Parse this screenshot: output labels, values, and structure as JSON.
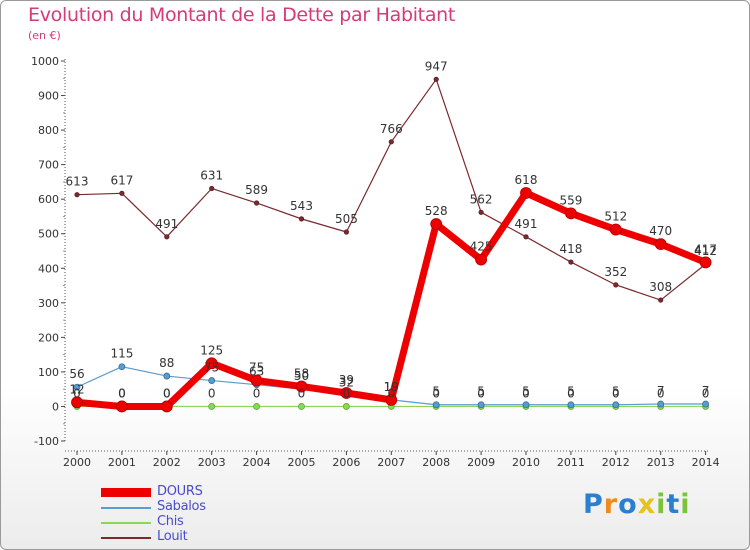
{
  "chart_data": {
    "type": "line",
    "title": "Evolution du Montant de la Dette par Habitant",
    "subtitle": "(en €)",
    "xlabel": "",
    "ylabel": "",
    "ylim": [
      -100,
      1000
    ],
    "yticks": [
      "-100",
      "0",
      "100",
      "200",
      "300",
      "400",
      "500",
      "600",
      "700",
      "800",
      "900",
      "1000"
    ],
    "ytick_values": [
      -100,
      0,
      100,
      200,
      300,
      400,
      500,
      600,
      700,
      800,
      900,
      1000
    ],
    "categories": [
      "2000",
      "2001",
      "2002",
      "2003",
      "2004",
      "2005",
      "2006",
      "2007",
      "2008",
      "2009",
      "2010",
      "2011",
      "2012",
      "2013",
      "2014"
    ],
    "grid": false,
    "legend_position": "bottom-left",
    "series": [
      {
        "name": "Louit",
        "color": "#7b2a2f",
        "values": [
          613,
          617,
          491,
          631,
          589,
          543,
          505,
          766,
          947,
          562,
          491,
          418,
          352,
          308,
          412
        ],
        "labels": [
          "613",
          "617",
          "491",
          "631",
          "589",
          "543",
          "505",
          "766",
          "947",
          "562",
          "491",
          "418",
          "352",
          "308",
          "412"
        ]
      },
      {
        "name": "Chis",
        "color": "#8ed65a",
        "values": [
          0,
          0,
          0,
          0,
          0,
          0,
          0,
          0,
          0,
          0,
          0,
          0,
          0,
          0,
          0
        ],
        "labels": [
          "0",
          "0",
          "0",
          "0",
          "0",
          "0",
          "0",
          "0",
          "0",
          "0",
          "0",
          "0",
          "0",
          "0",
          "0"
        ]
      },
      {
        "name": "Sabalos",
        "color": "#5a9cd0",
        "values": [
          56,
          115,
          88,
          75,
          63,
          50,
          32,
          19,
          5,
          5,
          5,
          5,
          5,
          7,
          7
        ],
        "labels": [
          "56",
          "115",
          "88",
          "75",
          "63",
          "50",
          "32",
          "19",
          "5",
          "5",
          "5",
          "5",
          "5",
          "7",
          "7"
        ]
      },
      {
        "name": "DOURS",
        "color": "#ee0000",
        "values": [
          12,
          0,
          0,
          125,
          75,
          58,
          39,
          19,
          528,
          425,
          618,
          559,
          512,
          470,
          417
        ],
        "labels": [
          "12",
          "0",
          "0",
          "125",
          "75",
          "58",
          "39",
          "19",
          "528",
          "425",
          "618",
          "559",
          "512",
          "470",
          "417"
        ]
      }
    ],
    "legend": [
      {
        "name": "DOURS",
        "color": "#ee0000"
      },
      {
        "name": "Sabalos",
        "color": "#5a9cd0"
      },
      {
        "name": "Chis",
        "color": "#8ed65a"
      },
      {
        "name": "Louit",
        "color": "#7b2a2f"
      }
    ]
  },
  "brand": {
    "letters": [
      "P",
      "r",
      "o",
      "x",
      "i",
      "t",
      "i"
    ],
    "colors": [
      "#2a7fd0",
      "#f08a1c",
      "#2a7fd0",
      "#e6c21a",
      "#7cc23a",
      "#2a7fd0",
      "#7cc23a"
    ]
  }
}
